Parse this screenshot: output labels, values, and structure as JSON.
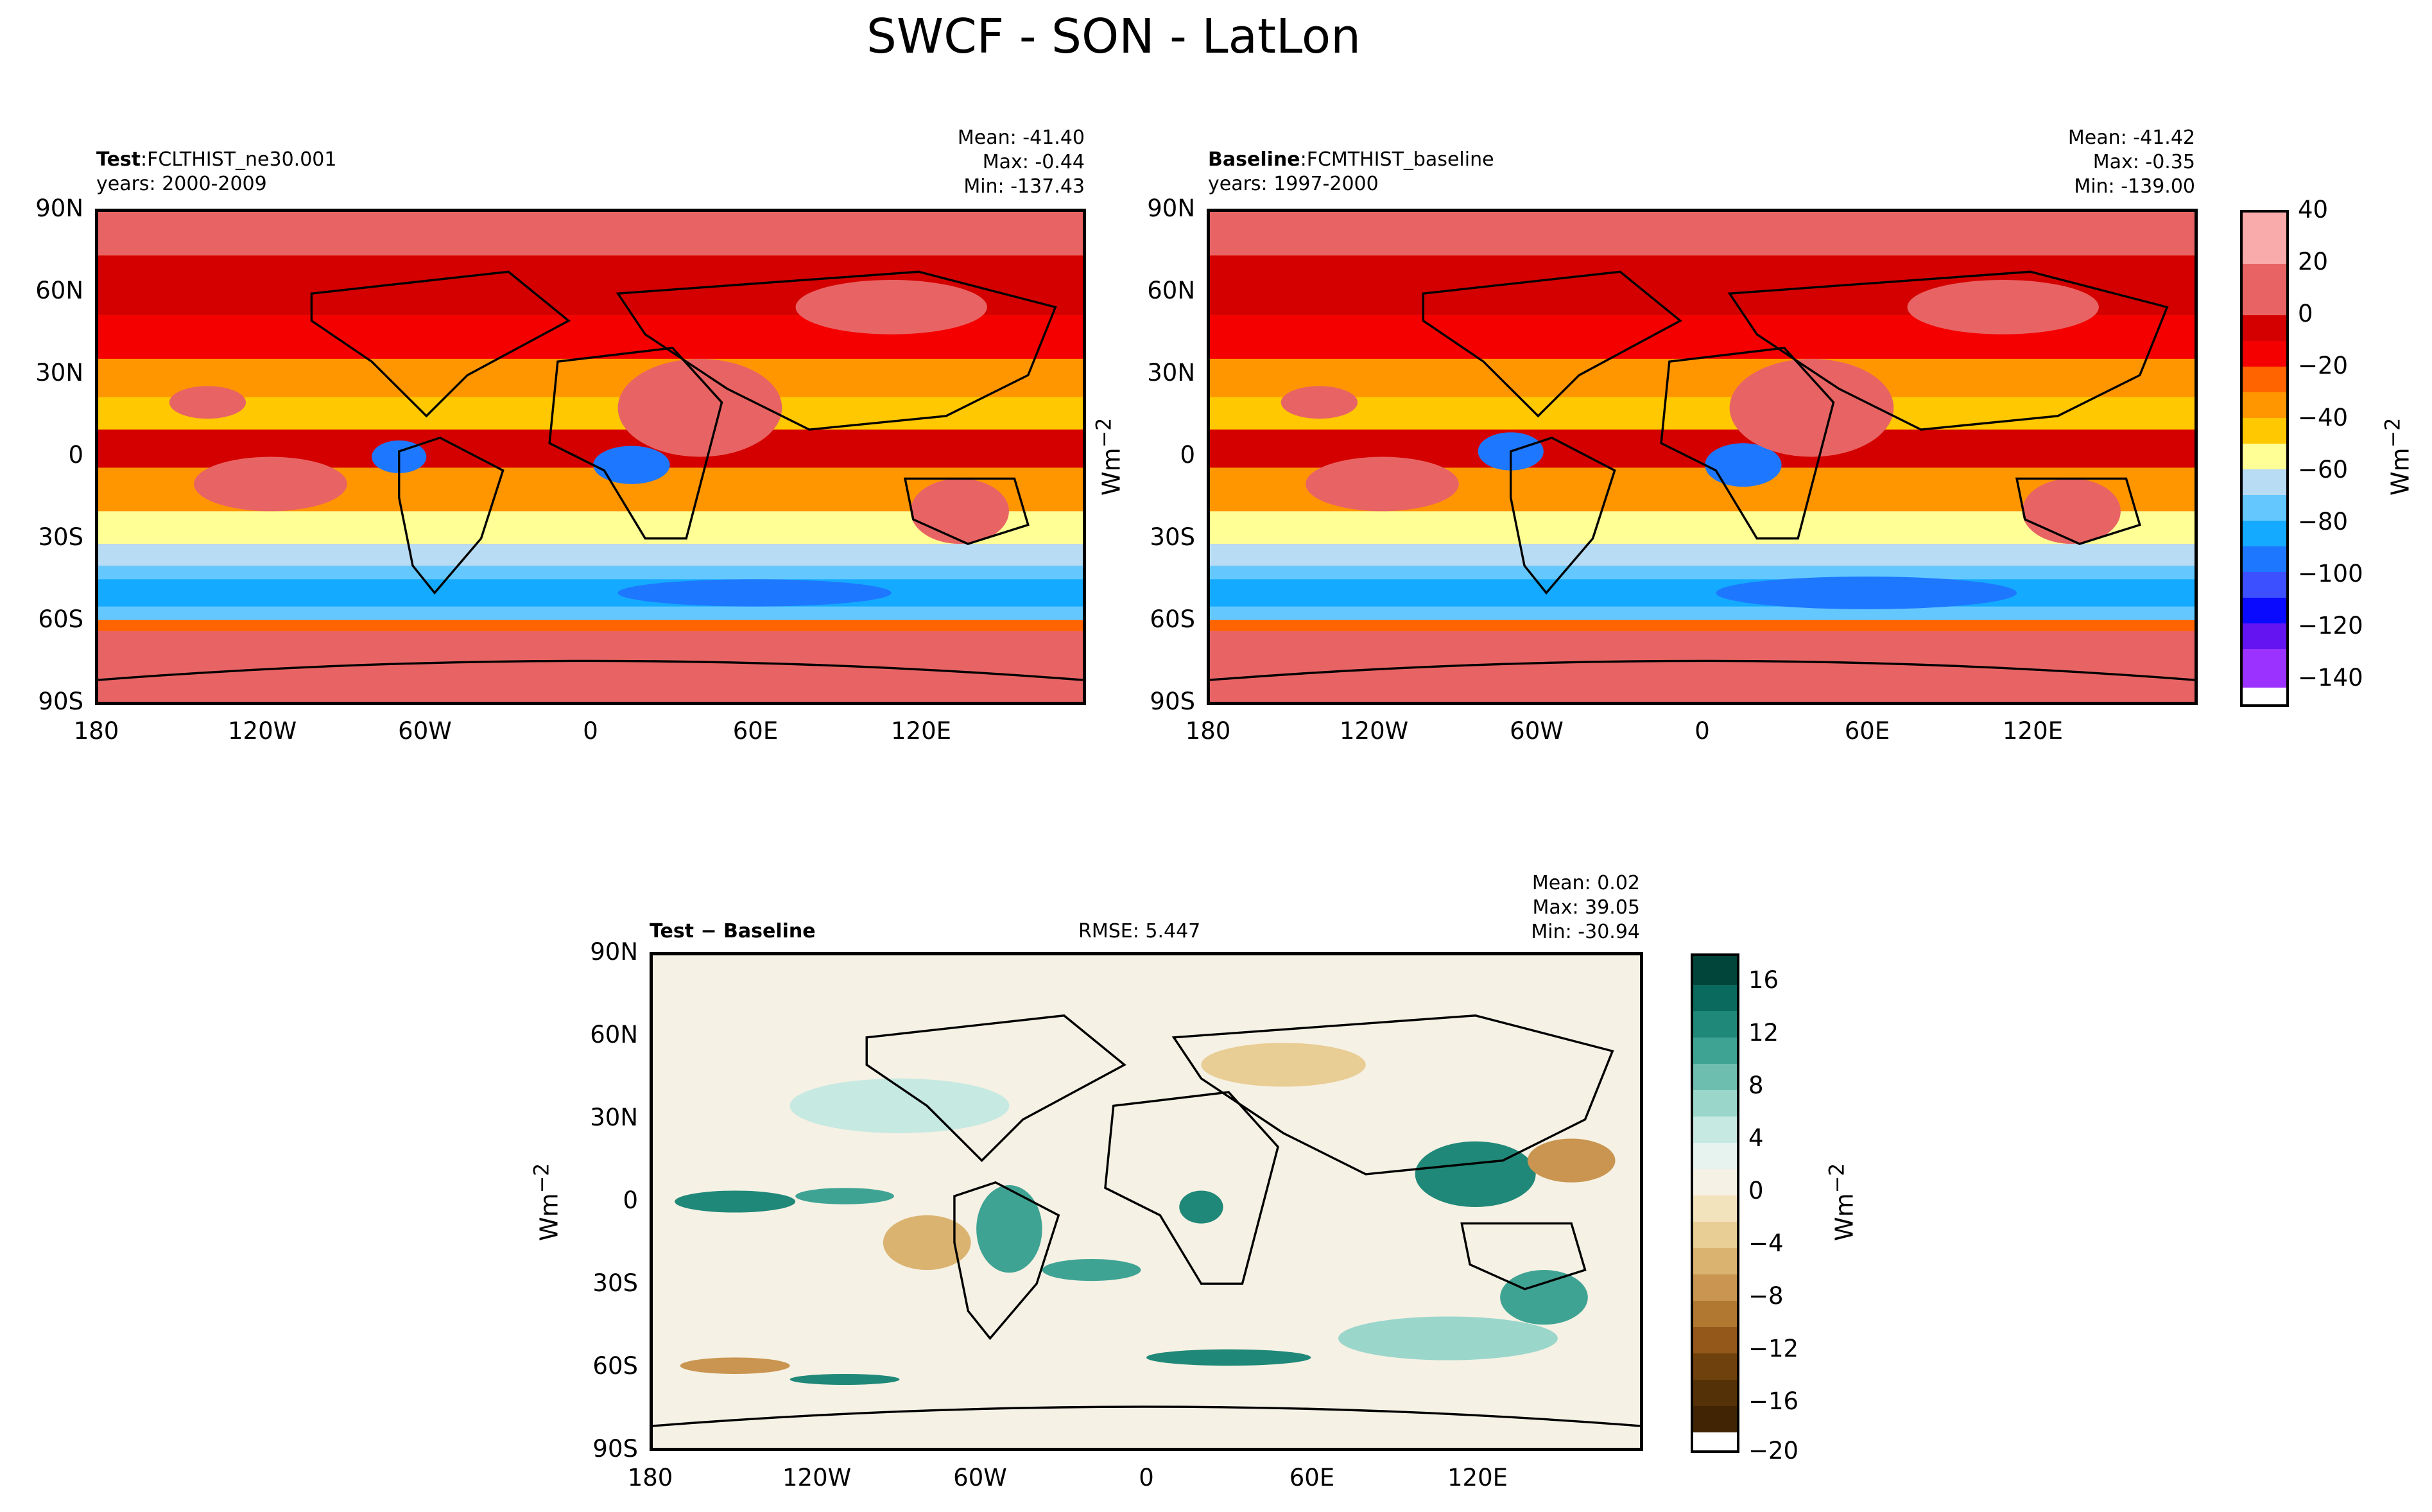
{
  "figure": {
    "title": "SWCF - SON - LatLon"
  },
  "panels": {
    "test": {
      "label_bold": "Test",
      "label_rest": ":FCLTHIST_ne30.001",
      "years": "years: 2000-2009",
      "mean": "Mean: -41.40",
      "max": "Max: -0.44",
      "min": "Min: -137.43"
    },
    "baseline": {
      "label_bold": "Baseline",
      "label_rest": ":FCMTHIST_baseline",
      "years": "years: 1997-2000",
      "mean": "Mean: -41.42",
      "max": "Max: -0.35",
      "min": "Min: -139.00"
    },
    "diff": {
      "label": "Test − Baseline",
      "rmse": "RMSE: 5.447",
      "mean": "Mean:  0.02",
      "max": "Max: 39.05",
      "min": "Min: -30.94"
    }
  },
  "axes": {
    "lat_ticks": [
      "90N",
      "60N",
      "30N",
      "0",
      "30S",
      "60S",
      "90S"
    ],
    "lon_ticks": [
      "180",
      "120W",
      "60W",
      "0",
      "60E",
      "120E"
    ],
    "unit_label": "Wm",
    "unit_exp": "−2"
  },
  "colorbars": {
    "main": {
      "ticks": [
        "40",
        "20",
        "0",
        "−20",
        "−40",
        "−60",
        "−80",
        "−100",
        "−120",
        "−140"
      ],
      "colors_top_to_bottom": [
        "#f9aaaa",
        "#f9aaaa",
        "#e86464",
        "#d40000",
        "#f40000",
        "#ff6400",
        "#ff9600",
        "#ffc800",
        "#ffff96",
        "#b9dcf5",
        "#64c8ff",
        "#14aaff",
        "#1e78ff",
        "#0a0aff",
        "#6414f0",
        "#9b32ff"
      ]
    },
    "diff": {
      "ticks": [
        "16",
        "12",
        "8",
        "4",
        "0",
        "−4",
        "−8",
        "−12",
        "−16",
        "−20"
      ],
      "colors_top_to_bottom": [
        "#01443a",
        "#0a6a5e",
        "#208878",
        "#3fa394",
        "#6ebeb0",
        "#9bd6cb",
        "#c6e9e2",
        "#e6f3ef",
        "#f5f1e4",
        "#f3e3bd",
        "#e8cd94",
        "#dbb370",
        "#c99550",
        "#b07830",
        "#93581a",
        "#6f410c",
        "#553107"
      ]
    }
  },
  "colors": {
    "land_cap": "#e86464",
    "ocean_mid": "#ff6400",
    "tropic_neg": "#1e78ff",
    "diff_bg": "#f5f1e4",
    "diff_pos": "#208878",
    "diff_neg": "#c99550"
  }
}
